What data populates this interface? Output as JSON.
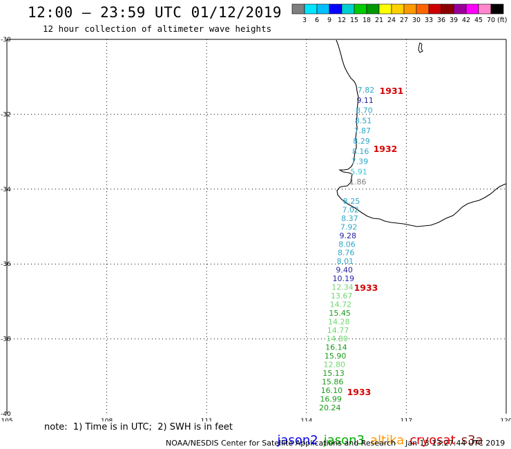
{
  "header": {
    "title": "12:00 – 23:59 UTC 01/12/2019",
    "subtitle": "12 hour collection of altimeter wave heights"
  },
  "colorbar": {
    "colors": [
      "#7f7f7f",
      "#00e5ff",
      "#00bfff",
      "#0000ff",
      "#00cfcf",
      "#00cc00",
      "#009900",
      "#ffff00",
      "#ffd000",
      "#ff9900",
      "#ff6600",
      "#cc0000",
      "#8b0000",
      "#990099",
      "#ff00ff",
      "#ff88cc",
      "#000000"
    ],
    "labels": [
      "3",
      "6",
      "9",
      "12",
      "15",
      "18",
      "21",
      "24",
      "27",
      "30",
      "33",
      "36",
      "39",
      "42",
      "45",
      "70 (ft)"
    ]
  },
  "map": {
    "lat_labels": [
      "-30",
      "-32",
      "-34",
      "-36",
      "-38",
      "-40"
    ],
    "lon_labels": [
      "105",
      "108",
      "111",
      "114",
      "117",
      "120"
    ],
    "lat_values": [
      -30,
      -32,
      -34,
      -36,
      -38,
      -40
    ],
    "lon_values": [
      105,
      108,
      111,
      114,
      117,
      120
    ]
  },
  "wave_heights": [
    {
      "v": "7.82",
      "c": "#2ca7c9"
    },
    {
      "v": "9.11",
      "c": "#1f1f9f"
    },
    {
      "v": "8.70",
      "c": "#2ca7c9"
    },
    {
      "v": "8.51",
      "c": "#2ca7c9"
    },
    {
      "v": "7.87",
      "c": "#2ca7c9"
    },
    {
      "v": "8.29",
      "c": "#2ca7c9"
    },
    {
      "v": "8.16",
      "c": "#2ca7c9"
    },
    {
      "v": "7.39",
      "c": "#2ca7c9"
    },
    {
      "v": "5.91",
      "c": "#33c7d6"
    },
    {
      "v": "1.86",
      "c": "#808080"
    },
    {
      "v": "8.25",
      "c": "#2ca7c9"
    },
    {
      "v": "7.02",
      "c": "#2ca7c9"
    },
    {
      "v": "8.37",
      "c": "#2ca7c9"
    },
    {
      "v": "7.92",
      "c": "#2ca7c9"
    },
    {
      "v": "9.28",
      "c": "#1f1f9f"
    },
    {
      "v": "8.06",
      "c": "#2ca7c9"
    },
    {
      "v": "8.76",
      "c": "#2ca7c9"
    },
    {
      "v": "8.01",
      "c": "#2ca7c9"
    },
    {
      "v": "9.40",
      "c": "#1f1f9f"
    },
    {
      "v": "10.19",
      "c": "#1f1f9f"
    },
    {
      "v": "12.34",
      "c": "#6fd66f"
    },
    {
      "v": "13.67",
      "c": "#6fd66f"
    },
    {
      "v": "14.72",
      "c": "#6fd66f"
    },
    {
      "v": "15.45",
      "c": "#1a9a1a"
    },
    {
      "v": "14.28",
      "c": "#6fd66f"
    },
    {
      "v": "14.77",
      "c": "#6fd66f"
    },
    {
      "v": "14.80",
      "c": "#6fd66f"
    },
    {
      "v": "16.14",
      "c": "#1a9a1a"
    },
    {
      "v": "15.90",
      "c": "#1a9a1a"
    },
    {
      "v": "12.80",
      "c": "#6fd66f"
    },
    {
      "v": "15.13",
      "c": "#1a9a1a"
    },
    {
      "v": "15.86",
      "c": "#1a9a1a"
    },
    {
      "v": "16.10",
      "c": "#1a9a1a"
    },
    {
      "v": "16.99",
      "c": "#1a9a1a"
    },
    {
      "v": "20.24",
      "c": "#1a9a1a"
    }
  ],
  "time_labels": [
    "1931",
    "1932",
    "1933",
    "1933"
  ],
  "time_label_color": "#d40000",
  "footer": {
    "note": "note:  1) Time is in UTC;  2) SWH is in feet",
    "legend": [
      {
        "name": "jason2",
        "color": "#0000ee"
      },
      {
        "name": "jason3",
        "color": "#00aa00"
      },
      {
        "name": "altika",
        "color": "#ff9900"
      },
      {
        "name": "cryosat",
        "color": "#dd0000"
      },
      {
        "name": "s3a",
        "color": "#8b1a1a"
      }
    ],
    "credit": "NOAA/NESDIS Center for Satellite Applications and Research",
    "timestamp": "Jan 13 13:27:44 UTC 2019"
  }
}
